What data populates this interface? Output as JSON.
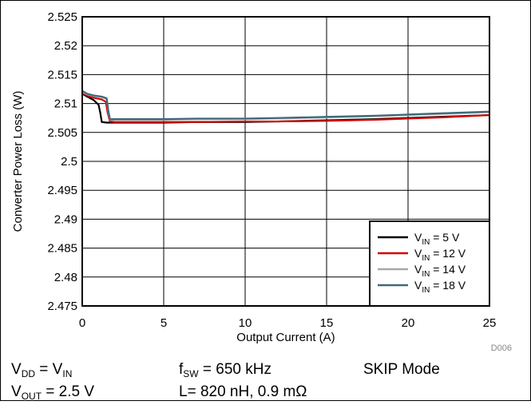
{
  "chart_data": {
    "type": "line",
    "xlabel": "Output Current (A)",
    "ylabel": "Converter Power Loss  (W)",
    "xlim": [
      0,
      25
    ],
    "ylim": [
      2.475,
      2.525
    ],
    "xticks": [
      "0",
      "5",
      "10",
      "15",
      "20",
      "25"
    ],
    "yticks": [
      "2.525",
      "2.52",
      "2.515",
      "2.51",
      "2.505",
      "2.5",
      "2.495",
      "2.49",
      "2.485",
      "2.48",
      "2.475"
    ],
    "grid": true,
    "legend_position": "bottom-right",
    "figure_id": "D006",
    "series": [
      {
        "name": "V_IN = 5 V",
        "main": "V",
        "sub": "IN",
        "rest": " = 5 V",
        "color": "#000000",
        "x": [
          0,
          0.3,
          0.7,
          1.0,
          1.1,
          1.2,
          1.5,
          2,
          5,
          7,
          10,
          12,
          15,
          18,
          20,
          22,
          25
        ],
        "y": [
          2.5117,
          2.5112,
          2.5106,
          2.5098,
          2.5085,
          2.5068,
          2.5067,
          2.5067,
          2.5067,
          2.5068,
          2.5068,
          2.5069,
          2.5071,
          2.5073,
          2.5075,
          2.5077,
          2.508
        ]
      },
      {
        "name": "V_IN = 12 V",
        "main": "V",
        "sub": "IN",
        "rest": " = 12 V",
        "color": "#d40000",
        "x": [
          0,
          0.3,
          0.7,
          1.2,
          1.45,
          1.55,
          1.7,
          2,
          5,
          7,
          10,
          12,
          15,
          18,
          20,
          22,
          25
        ],
        "y": [
          2.5118,
          2.5114,
          2.511,
          2.5107,
          2.5103,
          2.5085,
          2.5069,
          2.5068,
          2.5068,
          2.5068,
          2.5069,
          2.5069,
          2.507,
          2.5072,
          2.5074,
          2.5076,
          2.508
        ]
      },
      {
        "name": "V_IN = 14 V",
        "main": "V",
        "sub": "IN",
        "rest": " = 14 V",
        "color": "#a8a8a8",
        "x": [
          0,
          0.3,
          0.7,
          1.2,
          1.5,
          1.6,
          1.7,
          2,
          5,
          7,
          10,
          12,
          15,
          18,
          20,
          22,
          25
        ],
        "y": [
          2.512,
          2.5116,
          2.5113,
          2.5111,
          2.5108,
          2.5085,
          2.5072,
          2.5072,
          2.5072,
          2.5073,
          2.5073,
          2.5074,
          2.5076,
          2.5078,
          2.508,
          2.5082,
          2.5085
        ]
      },
      {
        "name": "V_IN = 18 V",
        "main": "V",
        "sub": "IN",
        "rest": " = 18 V",
        "color": "#3c6a78",
        "x": [
          0,
          0.3,
          0.7,
          1.2,
          1.5,
          1.6,
          1.7,
          2,
          5,
          7,
          10,
          12,
          15,
          18,
          20,
          22,
          25
        ],
        "y": [
          2.5122,
          2.5117,
          2.5114,
          2.5112,
          2.5109,
          2.5088,
          2.5073,
          2.5073,
          2.5073,
          2.5074,
          2.5074,
          2.5075,
          2.5077,
          2.5079,
          2.5081,
          2.5083,
          2.5086
        ]
      }
    ]
  },
  "conditions": {
    "vdd": {
      "a": "V",
      "a_sub": "DD",
      "mid": " = V",
      "b_sub": "IN"
    },
    "vout": {
      "a": "V",
      "a_sub": "OUT",
      "rest": " = 2.5 V"
    },
    "fsw": {
      "a": "f",
      "a_sub": "SW",
      "rest": " = 650 kHz"
    },
    "inductor": {
      "text": "L= 820 nH, 0.9 mΩ"
    },
    "mode": {
      "text": "SKIP Mode"
    }
  }
}
